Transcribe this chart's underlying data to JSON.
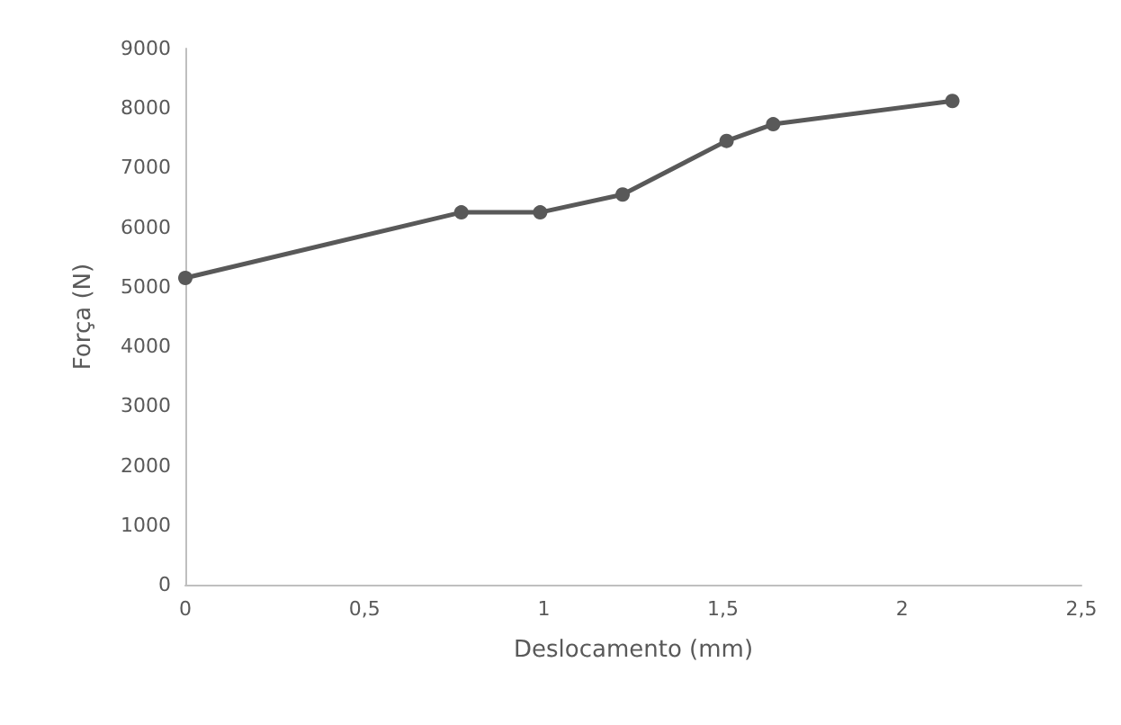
{
  "chart_data": {
    "type": "line",
    "xlabel": "Deslocamento (mm)",
    "ylabel": "Força (N)",
    "x": [
      0,
      0.77,
      0.99,
      1.22,
      1.51,
      1.64,
      2.14
    ],
    "series": [
      {
        "color": "#595959",
        "values": [
          5150,
          6250,
          6250,
          6550,
          7450,
          7730,
          8120
        ]
      }
    ],
    "xlim": [
      0,
      2.5
    ],
    "xticks": [
      0,
      {
        "value": 0.5,
        "label": "0,5"
      },
      1,
      {
        "value": 1.5,
        "label": "1,5"
      },
      2,
      {
        "value": 2.5,
        "label": "2,5"
      }
    ],
    "ylim": [
      0,
      9000
    ],
    "yticks": [
      0,
      1000,
      2000,
      3000,
      4000,
      5000,
      6000,
      7000,
      8000,
      9000
    ],
    "grid": false,
    "marker": "circle",
    "line_style": "solid"
  }
}
